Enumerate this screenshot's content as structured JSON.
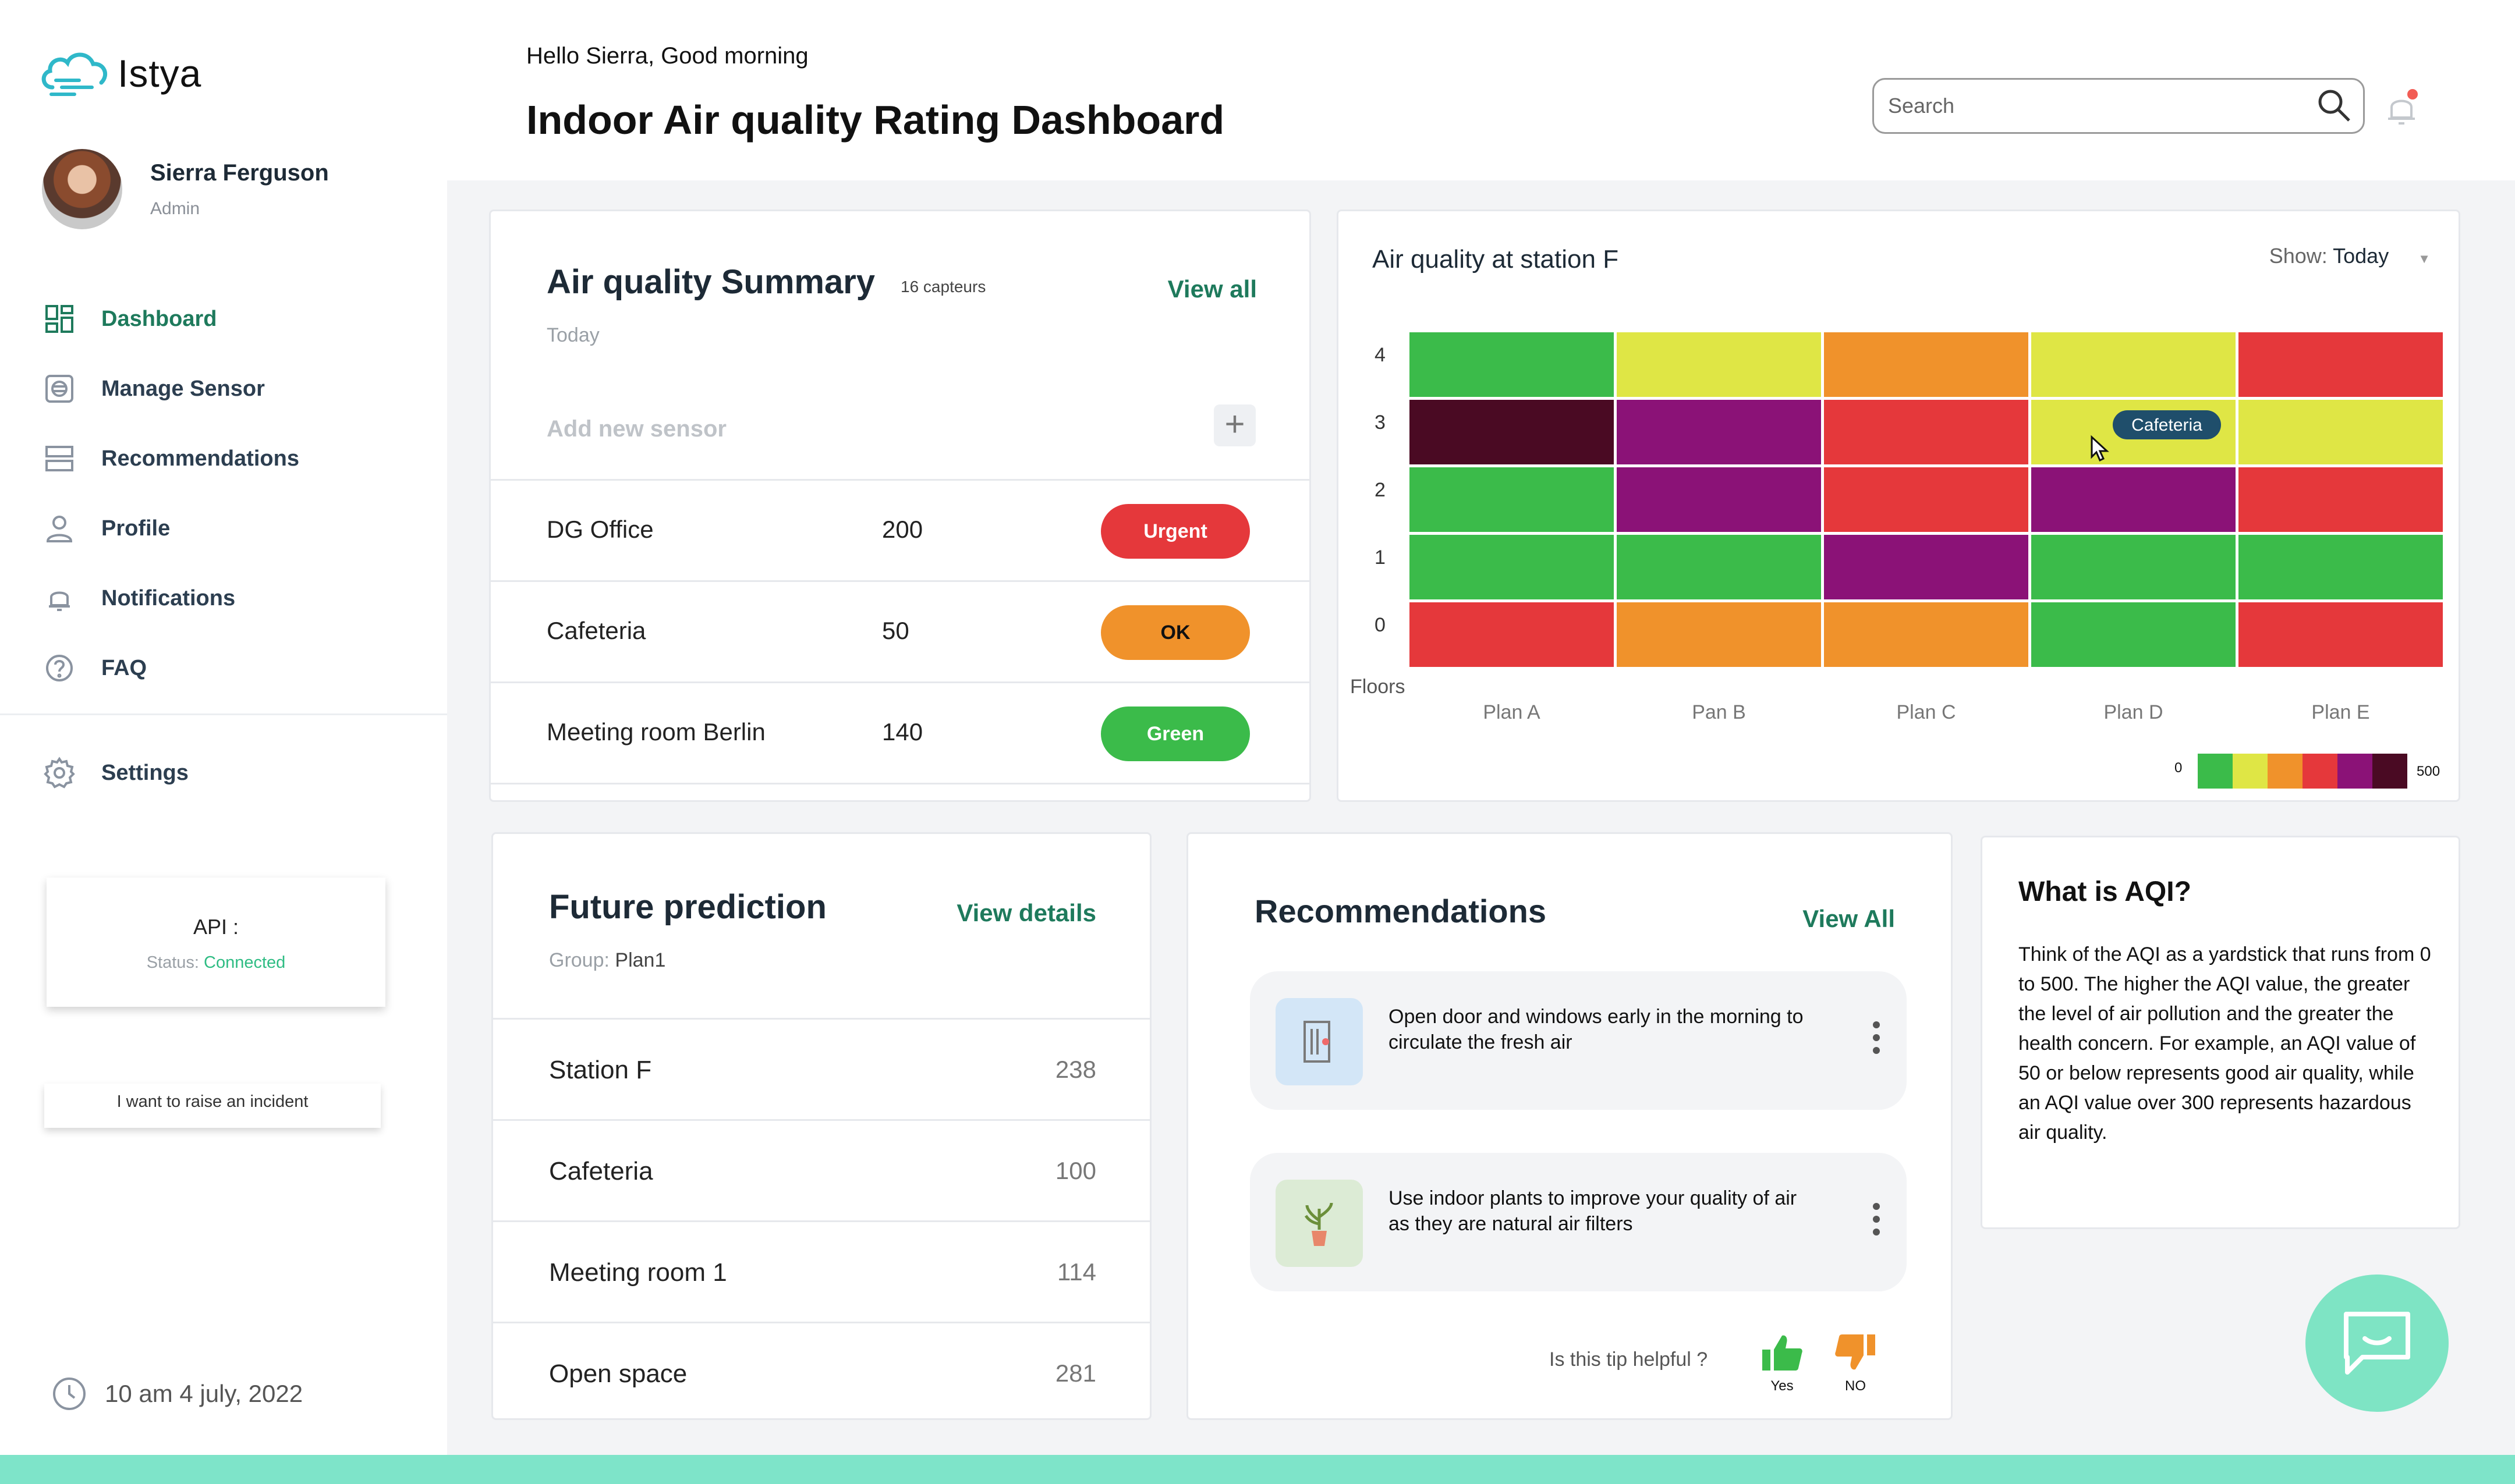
{
  "app": {
    "name": "Istya"
  },
  "user": {
    "name": "Sierra Ferguson",
    "role": "Admin"
  },
  "nav": {
    "items": [
      {
        "label": "Dashboard",
        "icon": "dashboard-icon",
        "active": true
      },
      {
        "label": "Manage Sensor",
        "icon": "sensor-icon"
      },
      {
        "label": "Recommendations",
        "icon": "list-icon"
      },
      {
        "label": "Profile",
        "icon": "person-icon"
      },
      {
        "label": "Notifications",
        "icon": "bell-icon"
      },
      {
        "label": "FAQ",
        "icon": "question-icon"
      }
    ],
    "settings": {
      "label": "Settings",
      "icon": "gear-icon"
    }
  },
  "api": {
    "title": "API :",
    "status_label": "Status:",
    "status_value": "Connected",
    "status_color": "#2ebc83"
  },
  "incident": {
    "label": "I want to raise an incident"
  },
  "datetime": {
    "text": "10 am  4 july, 2022",
    "icon": "clock-icon"
  },
  "header": {
    "greeting": "Hello Sierra, Good morning",
    "title": "Indoor Air quality Rating Dashboard",
    "search_placeholder": "Search",
    "notification_dot_color": "#f25c54"
  },
  "summary": {
    "title": "Air quality Summary",
    "count": "16  capteurs",
    "view_all": "View all",
    "date": "Today",
    "add_placeholder": "Add new sensor",
    "add_symbol": "+",
    "rows": [
      {
        "name": "DG Office",
        "value": "200",
        "status": "Urgent",
        "status_class": "urgent"
      },
      {
        "name": "Cafeteria",
        "value": "50",
        "status": "OK",
        "status_class": "ok"
      },
      {
        "name": "Meeting room Berlin",
        "value": "140",
        "status": "Green",
        "status_class": "green"
      }
    ]
  },
  "heatmap": {
    "title": "Air quality at station F",
    "show_label": "Show:",
    "show_value": "Today",
    "tooltip": "Cafeteria",
    "y_label": "Floors",
    "legend_min": "0",
    "legend_max": "500",
    "legend_colors": [
      "#3bbb4a",
      "#dfe645",
      "#f0922b",
      "#e5383b",
      "#8b1277",
      "#4a0a23"
    ],
    "colors": {
      "green": "#3bbb4a",
      "yellow": "#dfe645",
      "orange": "#f0922b",
      "red": "#e5383b",
      "purple": "#8b1277",
      "maroon": "#4a0a23"
    }
  },
  "chart_data": {
    "type": "heatmap",
    "title": "Air quality at station F",
    "x": [
      "Plan A",
      "Pan B",
      "Plan C",
      "Plan D",
      "Plan E"
    ],
    "y": [
      "4",
      "3",
      "2",
      "1",
      "0"
    ],
    "ylabel": "Floors",
    "levels": [
      [
        "green",
        "yellow",
        "orange",
        "yellow",
        "red"
      ],
      [
        "maroon",
        "purple",
        "red",
        "yellow",
        "yellow"
      ],
      [
        "green",
        "purple",
        "red",
        "purple",
        "red"
      ],
      [
        "green",
        "green",
        "purple",
        "green",
        "green"
      ],
      [
        "red",
        "orange",
        "orange",
        "green",
        "red"
      ]
    ],
    "scale_range": [
      0,
      500
    ],
    "tooltip_cell": {
      "x": "Plan D",
      "y": "3",
      "label": "Cafeteria"
    }
  },
  "future": {
    "title": "Future prediction",
    "view_details": "View details",
    "group_label": "Group:",
    "group_value": "Plan1",
    "rows": [
      {
        "name": "Station F",
        "value": "238"
      },
      {
        "name": "Cafeteria",
        "value": "100"
      },
      {
        "name": "Meeting room 1",
        "value": "114"
      },
      {
        "name": "Open space",
        "value": "281"
      }
    ]
  },
  "recommendations": {
    "title": "Recommendations",
    "view_all": "View All",
    "tips": [
      {
        "text": "Open door and windows early in the morning to circulate the fresh air",
        "icon": "door-icon",
        "icon_bg": "#d3e6f7"
      },
      {
        "text": "Use indoor plants to improve your quality of air as they are natural air filters",
        "icon": "plant-icon",
        "icon_bg": "#dcebd5"
      }
    ],
    "helpful_question": "Is this tip helpful ?",
    "yes_label": "Yes",
    "no_label": "NO",
    "yes_color": "#3bbb4a",
    "no_color": "#f0922b"
  },
  "aqi": {
    "title": "What is AQI?",
    "body": "Think of the AQI as a yardstick that runs from 0 to 500. The higher the AQI value, the greater the level of air pollution and the greater the health concern. For example, an AQI value of 50 or below represents good air quality, while an AQI value over 300 represents hazardous air quality."
  },
  "colors": {
    "accent": "#1e7a5c",
    "brand": "#7ee4c4"
  }
}
